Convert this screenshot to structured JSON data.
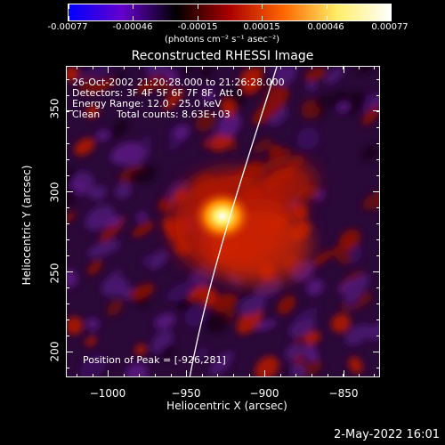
{
  "colorbar": {
    "ticks": [
      "-0.00077",
      "-0.00046",
      "-0.00015",
      "0.00015",
      "0.00046",
      "0.00077"
    ],
    "units_label": "(photons cm⁻² s⁻¹ asec⁻²)",
    "colors": [
      "#0000ff",
      "#6600cc",
      "#000000",
      "#aa0000",
      "#ff6600",
      "#ffee66",
      "#ffffff"
    ]
  },
  "title": "Reconstructed RHESSI Image",
  "annotations": {
    "time_range": "26-Oct-2002 21:20:28.000 to 21:26:28.000",
    "detectors": "Detectors: 3F 4F 5F 6F 7F 8F, Att 0",
    "energy_range": "Energy Range: 12.0 - 25.0 keV",
    "method": "Clean",
    "total_counts": "Total counts: 8.63E+03",
    "peak_position": "Position of Peak = [-926,281]"
  },
  "axes": {
    "xlabel": "Heliocentric X (arcsec)",
    "ylabel": "Heliocentric Y (arcsec)",
    "xticks": [
      "−1000",
      "−950",
      "−900",
      "−850"
    ],
    "yticks": [
      "200",
      "250",
      "300",
      "350"
    ],
    "xrange": [
      -1025,
      -830
    ],
    "yrange": [
      183,
      378
    ]
  },
  "footer": {
    "timestamp": "2-May-2022 16:01"
  }
}
